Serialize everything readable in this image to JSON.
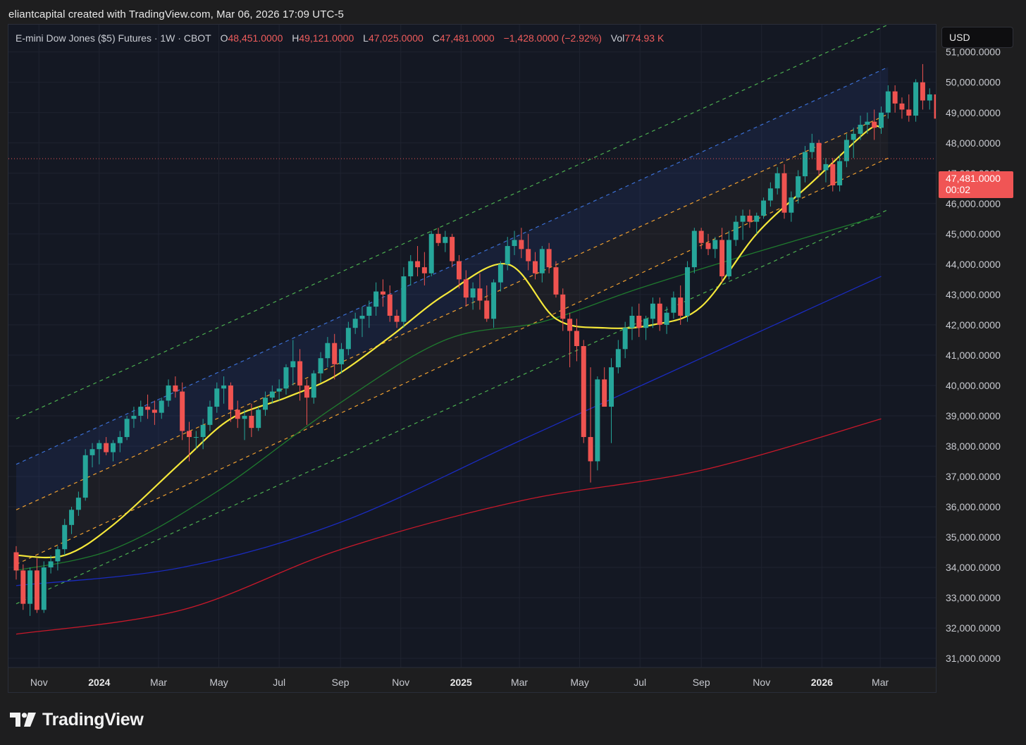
{
  "credit": "eliantcapital created with TradingView.com, Mar 06, 2026 17:09 UTC-5",
  "legend": {
    "symbol": "E-mini Dow Jones ($5) Futures · 1W · CBOT",
    "open_label": "O",
    "open": "48,451.0000",
    "high_label": "H",
    "high": "49,121.0000",
    "low_label": "L",
    "low": "47,025.0000",
    "close_label": "C",
    "close": "47,481.0000",
    "change": "−1,428.0000 (−2.92%)",
    "vol_label": "Vol",
    "vol": "774.93 K"
  },
  "currency": "USD",
  "last_price": {
    "price": "47,481.0000",
    "countdown": "00:02"
  },
  "brand": "TradingView",
  "colors": {
    "up": "#26a69a",
    "down": "#ef5350",
    "sma_fast": "#f5e83a",
    "sma_mid": "#1f7a2e",
    "sma_slow": "#1a2bbf",
    "sma_long": "#c8182a",
    "channel_outer": "#4caf50",
    "channel_upper": "#3b6fd4",
    "channel_inner": "#f0a030",
    "last_price_line": "#f05555"
  },
  "chart_data": {
    "type": "candlestick",
    "interval": "1W",
    "y_axis": {
      "range": [
        30700,
        51900
      ],
      "tick_labels": [
        "31,000.0000",
        "32,000.0000",
        "33,000.0000",
        "34,000.0000",
        "35,000.0000",
        "36,000.0000",
        "37,000.0000",
        "38,000.0000",
        "39,000.0000",
        "40,000.0000",
        "41,000.0000",
        "42,000.0000",
        "43,000.0000",
        "44,000.0000",
        "45,000.0000",
        "46,000.0000",
        "47,000.0000",
        "48,000.0000",
        "49,000.0000",
        "50,000.0000",
        "51,000.0000"
      ],
      "tick_values": [
        31000,
        32000,
        33000,
        34000,
        35000,
        36000,
        37000,
        38000,
        39000,
        40000,
        41000,
        42000,
        43000,
        44000,
        45000,
        46000,
        47000,
        48000,
        49000,
        50000,
        51000
      ]
    },
    "x_axis": {
      "start": "2023-10-09",
      "tick_labels": [
        {
          "label": "Nov",
          "date": "2023-11-01",
          "bold": false
        },
        {
          "label": "2024",
          "date": "2024-01-01",
          "bold": true
        },
        {
          "label": "Mar",
          "date": "2024-03-01",
          "bold": false
        },
        {
          "label": "May",
          "date": "2024-05-01",
          "bold": false
        },
        {
          "label": "Jul",
          "date": "2024-07-01",
          "bold": false
        },
        {
          "label": "Sep",
          "date": "2024-09-01",
          "bold": false
        },
        {
          "label": "Nov",
          "date": "2024-11-01",
          "bold": false
        },
        {
          "label": "2025",
          "date": "2025-01-01",
          "bold": true
        },
        {
          "label": "Mar",
          "date": "2025-03-01",
          "bold": false
        },
        {
          "label": "May",
          "date": "2025-05-01",
          "bold": false
        },
        {
          "label": "Jul",
          "date": "2025-07-01",
          "bold": false
        },
        {
          "label": "Sep",
          "date": "2025-09-01",
          "bold": false
        },
        {
          "label": "Nov",
          "date": "2025-11-01",
          "bold": false
        },
        {
          "label": "2026",
          "date": "2026-01-01",
          "bold": true
        },
        {
          "label": "Mar",
          "date": "2026-03-01",
          "bold": false
        }
      ]
    },
    "last_price": 47481,
    "ohlc_weeks": [
      [
        34500,
        34700,
        33600,
        33900
      ],
      [
        33900,
        34100,
        32600,
        32800
      ],
      [
        32800,
        34000,
        32400,
        33900
      ],
      [
        33900,
        34300,
        32500,
        32600
      ],
      [
        32600,
        34200,
        32500,
        34000
      ],
      [
        34000,
        34400,
        33800,
        34200
      ],
      [
        34200,
        34700,
        33900,
        34600
      ],
      [
        34600,
        35600,
        34400,
        35400
      ],
      [
        35400,
        36000,
        35100,
        35900
      ],
      [
        35900,
        36500,
        35700,
        36300
      ],
      [
        36300,
        37900,
        36200,
        37700
      ],
      [
        37700,
        38100,
        37300,
        37900
      ],
      [
        37900,
        38200,
        37400,
        38100
      ],
      [
        38100,
        38300,
        37700,
        37800
      ],
      [
        37800,
        38200,
        37500,
        38100
      ],
      [
        38100,
        38500,
        37800,
        38300
      ],
      [
        38300,
        39000,
        38200,
        38900
      ],
      [
        38900,
        39300,
        38600,
        39000
      ],
      [
        39000,
        39500,
        38800,
        39300
      ],
      [
        39300,
        39700,
        38900,
        39200
      ],
      [
        39200,
        39500,
        38700,
        39100
      ],
      [
        39100,
        39600,
        38900,
        39500
      ],
      [
        39500,
        40200,
        39300,
        40000
      ],
      [
        40000,
        40300,
        39600,
        39800
      ],
      [
        39800,
        40100,
        38200,
        38500
      ],
      [
        38500,
        38800,
        37500,
        38300
      ],
      [
        38300,
        38500,
        37900,
        38300
      ],
      [
        38300,
        38900,
        37900,
        38700
      ],
      [
        38700,
        39500,
        38500,
        39300
      ],
      [
        39300,
        40100,
        39100,
        39900
      ],
      [
        39900,
        40300,
        39400,
        40000
      ],
      [
        40000,
        40100,
        38800,
        39200
      ],
      [
        39200,
        39500,
        38600,
        38900
      ],
      [
        38900,
        39200,
        38200,
        39000
      ],
      [
        39000,
        39400,
        38300,
        38600
      ],
      [
        38600,
        39300,
        38500,
        39200
      ],
      [
        39200,
        39800,
        39000,
        39600
      ],
      [
        39600,
        40000,
        39400,
        39800
      ],
      [
        39800,
        40200,
        39500,
        39900
      ],
      [
        39900,
        40700,
        39700,
        40600
      ],
      [
        40600,
        41500,
        40000,
        40800
      ],
      [
        40800,
        41200,
        39500,
        40000
      ],
      [
        40000,
        40200,
        38700,
        39600
      ],
      [
        39600,
        40500,
        39400,
        40400
      ],
      [
        40400,
        41100,
        40100,
        40900
      ],
      [
        40900,
        41600,
        40600,
        41400
      ],
      [
        41400,
        41700,
        40200,
        40700
      ],
      [
        40700,
        41400,
        40400,
        41200
      ],
      [
        41200,
        42100,
        41000,
        41900
      ],
      [
        41900,
        42400,
        41700,
        42200
      ],
      [
        42200,
        42600,
        41600,
        42300
      ],
      [
        42300,
        42800,
        41900,
        42600
      ],
      [
        42600,
        43400,
        42300,
        43100
      ],
      [
        43100,
        43500,
        42600,
        43000
      ],
      [
        43000,
        43300,
        42100,
        42300
      ],
      [
        42300,
        42500,
        41900,
        42100
      ],
      [
        42100,
        43900,
        41900,
        43600
      ],
      [
        43600,
        44300,
        43300,
        44100
      ],
      [
        44100,
        44600,
        43600,
        43900
      ],
      [
        43900,
        44400,
        43300,
        43700
      ],
      [
        43700,
        45100,
        43600,
        45000
      ],
      [
        45000,
        45200,
        44600,
        44700
      ],
      [
        44700,
        45100,
        44400,
        44900
      ],
      [
        44900,
        45000,
        43900,
        44100
      ],
      [
        44100,
        44300,
        43200,
        43500
      ],
      [
        43500,
        43800,
        42600,
        42900
      ],
      [
        42900,
        43400,
        42500,
        43200
      ],
      [
        43200,
        43700,
        42500,
        42800
      ],
      [
        42800,
        43300,
        42100,
        42200
      ],
      [
        42200,
        43500,
        41900,
        43400
      ],
      [
        43400,
        44100,
        43100,
        44000
      ],
      [
        44000,
        44900,
        43800,
        44600
      ],
      [
        44600,
        45100,
        44300,
        44800
      ],
      [
        44800,
        45200,
        44200,
        44500
      ],
      [
        44500,
        45000,
        43800,
        44100
      ],
      [
        44100,
        44400,
        43500,
        43700
      ],
      [
        43700,
        44600,
        43400,
        44500
      ],
      [
        44500,
        44700,
        43700,
        43900
      ],
      [
        43900,
        44100,
        42900,
        43000
      ],
      [
        43000,
        43200,
        41800,
        42200
      ],
      [
        42200,
        42400,
        40600,
        41800
      ],
      [
        41800,
        42200,
        40800,
        41300
      ],
      [
        41300,
        41500,
        38100,
        38300
      ],
      [
        38300,
        40600,
        36800,
        37500
      ],
      [
        37500,
        40300,
        37200,
        40200
      ],
      [
        40200,
        40600,
        39800,
        39300
      ],
      [
        39300,
        40900,
        38100,
        40600
      ],
      [
        40600,
        41500,
        40400,
        41200
      ],
      [
        41200,
        42100,
        40900,
        41900
      ],
      [
        41900,
        42600,
        41500,
        42300
      ],
      [
        42300,
        42700,
        41600,
        41900
      ],
      [
        41900,
        42300,
        41500,
        42200
      ],
      [
        42200,
        42900,
        41900,
        42700
      ],
      [
        42700,
        42900,
        41800,
        42000
      ],
      [
        42000,
        42600,
        41700,
        42400
      ],
      [
        42400,
        43100,
        42200,
        42900
      ],
      [
        42900,
        43300,
        42000,
        42300
      ],
      [
        42300,
        44100,
        42100,
        43900
      ],
      [
        43900,
        45200,
        43700,
        45100
      ],
      [
        45100,
        45200,
        44500,
        44700
      ],
      [
        44700,
        45000,
        44300,
        44500
      ],
      [
        44500,
        44900,
        44200,
        44800
      ],
      [
        44800,
        45200,
        43400,
        43600
      ],
      [
        43600,
        45100,
        43500,
        44800
      ],
      [
        44800,
        45600,
        44600,
        45400
      ],
      [
        45400,
        45800,
        44800,
        45600
      ],
      [
        45600,
        45800,
        45200,
        45400
      ],
      [
        45400,
        45700,
        45000,
        45600
      ],
      [
        45600,
        46200,
        45500,
        46100
      ],
      [
        46100,
        46700,
        45900,
        46500
      ],
      [
        46500,
        47200,
        46300,
        47000
      ],
      [
        47000,
        47300,
        45500,
        45700
      ],
      [
        45700,
        46400,
        45400,
        46200
      ],
      [
        46200,
        47100,
        46000,
        46900
      ],
      [
        46900,
        47900,
        46700,
        47700
      ],
      [
        47700,
        48300,
        47500,
        48000
      ],
      [
        48000,
        48100,
        46900,
        47100
      ],
      [
        47100,
        47500,
        46700,
        47300
      ],
      [
        47300,
        47500,
        46400,
        46600
      ],
      [
        46600,
        47600,
        46400,
        47400
      ],
      [
        47400,
        48300,
        47200,
        48100
      ],
      [
        48100,
        48500,
        47500,
        48300
      ],
      [
        48300,
        48900,
        48100,
        48600
      ],
      [
        48600,
        49000,
        48300,
        48700
      ],
      [
        48700,
        49100,
        48100,
        48500
      ],
      [
        48500,
        49200,
        48300,
        49000
      ],
      [
        49000,
        49900,
        48800,
        49700
      ],
      [
        49700,
        49900,
        49000,
        49300
      ],
      [
        49300,
        49500,
        48800,
        49100
      ],
      [
        49100,
        49600,
        48700,
        48900
      ],
      [
        48900,
        50100,
        48700,
        50000
      ],
      [
        50000,
        50600,
        49100,
        49400
      ],
      [
        49400,
        49800,
        49100,
        49600
      ],
      [
        49600,
        49900,
        48500,
        48800
      ],
      [
        48451,
        49121,
        47025,
        47481
      ]
    ],
    "channels": {
      "anchor_dates": [
        "2023-10-09",
        "2026-03-09"
      ],
      "outer_upper": [
        38900,
        51900
      ],
      "upper": [
        37400,
        50500
      ],
      "inner_upper": [
        35900,
        48950
      ],
      "inner_lower": [
        34100,
        47500
      ],
      "outer_lower": [
        32800,
        45800
      ]
    },
    "sma_fast": {
      "x": [
        "2023-10-09",
        "2023-11-27",
        "2024-01-15",
        "2024-03-25",
        "2024-05-13",
        "2024-07-08",
        "2024-08-26",
        "2024-10-21",
        "2024-12-16",
        "2025-02-17",
        "2025-04-07",
        "2025-05-26",
        "2025-07-14",
        "2025-09-01",
        "2025-10-27",
        "2025-12-22",
        "2026-02-16",
        "2026-03-02"
      ],
      "y": [
        34400,
        34400,
        35400,
        37500,
        38900,
        39600,
        40300,
        41600,
        43000,
        44000,
        42200,
        41900,
        42000,
        42600,
        45000,
        46700,
        48400,
        48500
      ]
    },
    "sma_mid": {
      "x": [
        "2023-10-09",
        "2024-01-15",
        "2024-04-29",
        "2024-08-26",
        "2024-12-16",
        "2025-03-24",
        "2025-06-30",
        "2025-10-27",
        "2026-03-02"
      ],
      "y": [
        33900,
        34600,
        36500,
        39300,
        41500,
        42100,
        43200,
        44400,
        45600
      ]
    },
    "sma_slow": {
      "x": [
        "2023-10-09",
        "2024-03-25",
        "2024-09-02",
        "2025-03-03",
        "2025-09-01",
        "2026-03-02"
      ],
      "y": [
        33400,
        34000,
        35500,
        38200,
        40900,
        43600
      ]
    },
    "sma_long": {
      "x": [
        "2023-10-09",
        "2024-03-25",
        "2024-09-02",
        "2025-03-03",
        "2025-09-01",
        "2026-03-02"
      ],
      "y": [
        31800,
        32600,
        34600,
        36200,
        37200,
        38900
      ]
    }
  }
}
